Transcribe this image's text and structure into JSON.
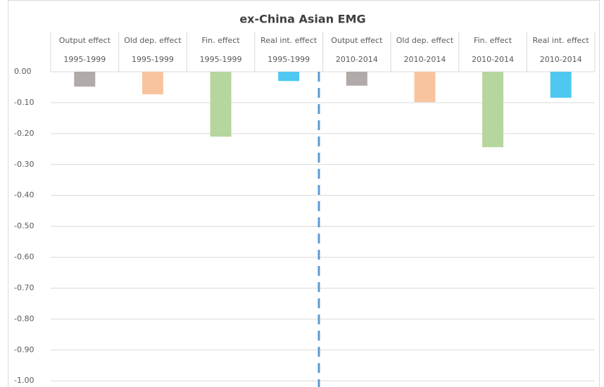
{
  "chart_data": {
    "type": "bar",
    "title": "ex-China Asian EMG",
    "categories": [
      [
        "Output effect",
        "1995-1999"
      ],
      [
        "Old dep. effect",
        "1995-1999"
      ],
      [
        "Fin. effect",
        "1995-1999"
      ],
      [
        "Real int. effect",
        "1995-1999"
      ],
      [
        "Output effect",
        "2010-2014"
      ],
      [
        "Old dep. effect",
        "2010-2014"
      ],
      [
        "Fin. effect",
        "2010-2014"
      ],
      [
        "Real int. effect",
        "2010-2014"
      ]
    ],
    "values": [
      -0.048,
      -0.073,
      -0.21,
      -0.03,
      -0.045,
      -0.098,
      -0.244,
      -0.084
    ],
    "colors": [
      "#b0aaa8",
      "#f8c4a0",
      "#b5d69c",
      "#4ec8f0",
      "#b0aaa8",
      "#f8c4a0",
      "#b5d69c",
      "#4ec8f0"
    ],
    "ylim": [
      -1.02,
      0
    ],
    "yticks": [
      {
        "value": 0,
        "label": "0.00"
      },
      {
        "value": -0.1,
        "label": "-0.10"
      },
      {
        "value": -0.2,
        "label": "-0.20"
      },
      {
        "value": -0.3,
        "label": "-0.30"
      },
      {
        "value": -0.4,
        "label": "-0.40"
      },
      {
        "value": -0.5,
        "label": "-0.50"
      },
      {
        "value": -0.6,
        "label": "-0.60"
      },
      {
        "value": -0.7,
        "label": "-0.70"
      },
      {
        "value": -0.8,
        "label": "-0.80"
      },
      {
        "value": -0.9,
        "label": "-0.90"
      },
      {
        "value": -1,
        "label": "-1.00"
      }
    ],
    "grid": true
  }
}
